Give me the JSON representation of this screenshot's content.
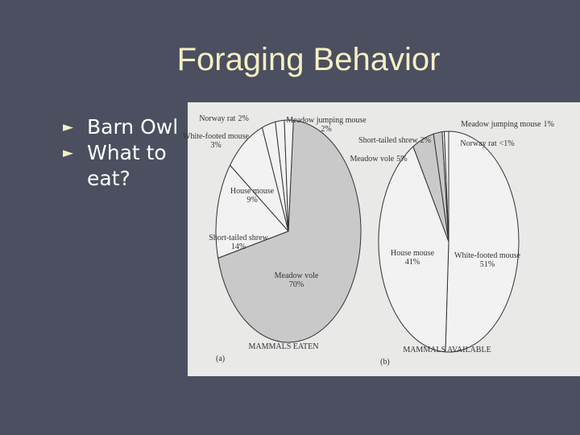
{
  "slide": {
    "title": "Foraging Behavior",
    "bullets": [
      "Barn Owl",
      "What to eat?"
    ]
  },
  "chart_data": [
    {
      "type": "pie",
      "panel": "(a)",
      "caption": "MAMMALS EATEN",
      "categories": [
        "Meadow vole",
        "Short-tailed shrew",
        "House mouse",
        "White-footed mouse",
        "Norway rat",
        "Meadow jumping mouse"
      ],
      "values": [
        70,
        14,
        9,
        3,
        2,
        2
      ],
      "value_labels": [
        "70%",
        "14%",
        "9%",
        "3%",
        "2%",
        "2%"
      ],
      "colors": [
        "#c9c9c9",
        "#f2f2f2",
        "#f2f2f2",
        "#f2f2f2",
        "#f2f2f2",
        "#f2f2f2"
      ]
    },
    {
      "type": "pie",
      "panel": "(b)",
      "caption": "MAMMALS AVAILABLE",
      "categories": [
        "White-footed mouse",
        "House mouse",
        "Meadow vole",
        "Short-tailed shrew",
        "Norway rat",
        "Meadow jumping mouse"
      ],
      "values": [
        51,
        41,
        5,
        2,
        0.5,
        1
      ],
      "value_labels": [
        "51%",
        "41%",
        "5%",
        "2%",
        "<1%",
        "1%"
      ],
      "colors": [
        "#f2f2f2",
        "#f2f2f2",
        "#c9c9c9",
        "#c9c9c9",
        "#f2f2f2",
        "#f2f2f2"
      ]
    }
  ]
}
